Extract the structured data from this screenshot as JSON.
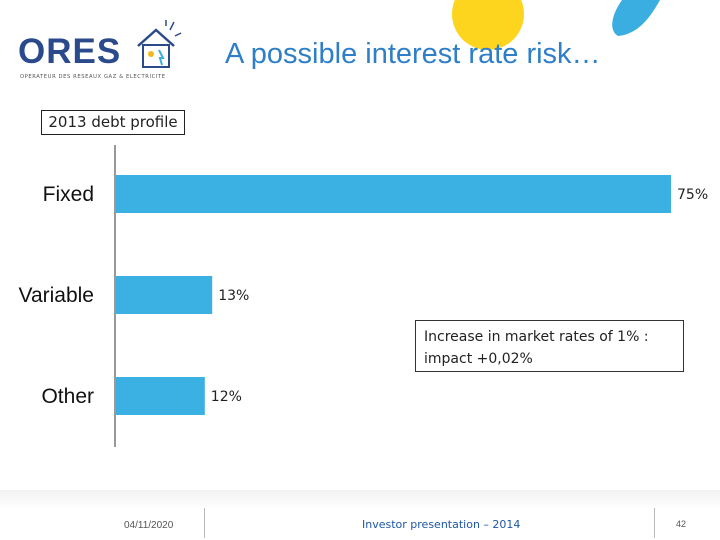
{
  "header": {
    "logo_text": "ORES",
    "logo_tagline": "OPERATEUR DES RESEAUX GAZ & ELECTRICITE",
    "title": "A possible interest rate risk…"
  },
  "subtitle": "2013 debt profile",
  "annotation": {
    "line1": "Increase in market rates of 1% :",
    "line2": "impact +0,02%"
  },
  "colors": {
    "bar": "#3bb0e3",
    "title": "#2e7fc8",
    "decor_yellow": "#fdd51e",
    "decor_blue": "#3aaee0"
  },
  "chart_data": {
    "type": "bar",
    "orientation": "horizontal",
    "categories": [
      "Fixed",
      "Variable",
      "Other"
    ],
    "values": [
      75,
      13,
      12
    ],
    "data_labels": [
      "75%",
      "13%",
      "12%"
    ],
    "xlim": [
      0,
      75
    ],
    "grid": false,
    "legend": "none"
  },
  "footer": {
    "date": "04/11/2020",
    "center": "Investor presentation – 2014",
    "page": "42"
  }
}
